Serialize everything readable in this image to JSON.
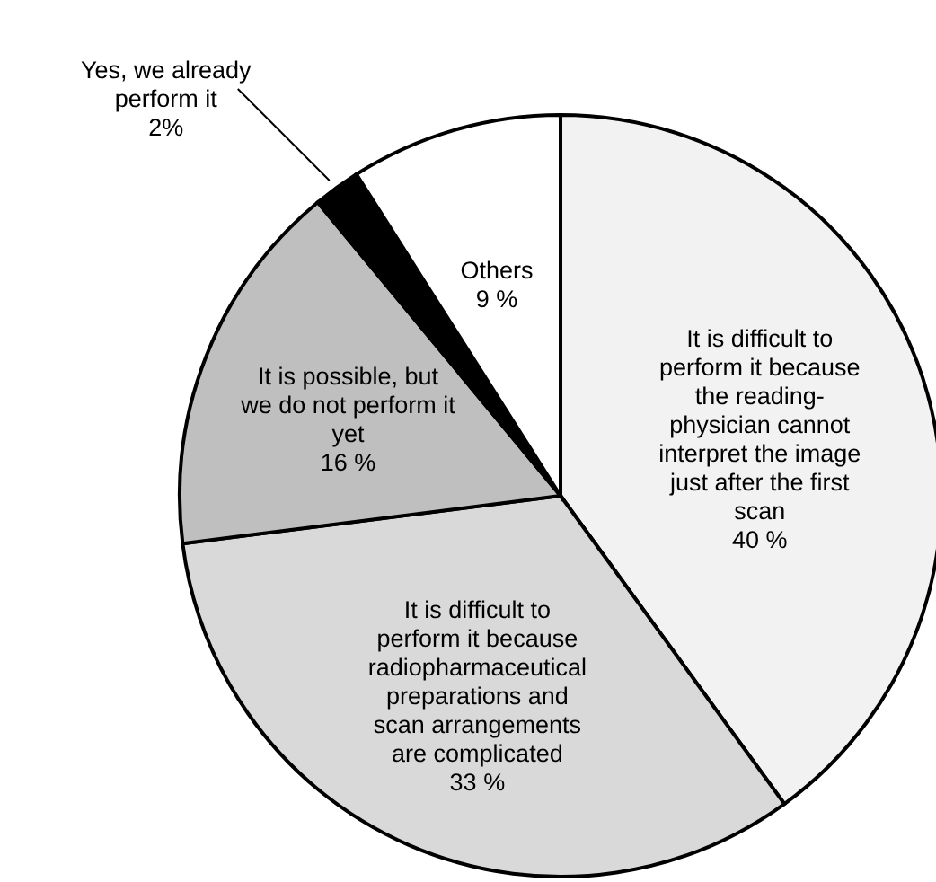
{
  "chart_data": {
    "type": "pie",
    "categories": [
      "It is difficult to perform it because the reading-physician cannot interpret the image just after the first scan",
      "It is difficult to perform it because radiopharmaceutical preparations and scan arrangements are complicated",
      "It is possible, but we do not perform it yet",
      "Yes, we already perform it",
      "Others"
    ],
    "values": [
      40,
      33,
      16,
      2,
      9
    ],
    "colors": [
      "#f2f2f2",
      "#d9d9d9",
      "#bfbfbf",
      "#000000",
      "#ffffff"
    ],
    "value_labels": [
      "40 %",
      "33 %",
      "16 %",
      "2%",
      "9 %"
    ]
  }
}
